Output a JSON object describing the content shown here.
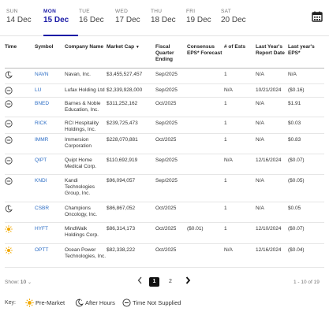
{
  "days": [
    {
      "dow": "SUN",
      "date": "14 Dec",
      "active": false
    },
    {
      "dow": "MON",
      "date": "15 Dec",
      "active": true
    },
    {
      "dow": "TUE",
      "date": "16 Dec",
      "active": false
    },
    {
      "dow": "WED",
      "date": "17 Dec",
      "active": false
    },
    {
      "dow": "THU",
      "date": "18 Dec",
      "active": false
    },
    {
      "dow": "FRI",
      "date": "19 Dec",
      "active": false
    },
    {
      "dow": "SAT",
      "date": "20 Dec",
      "active": false
    }
  ],
  "columns": {
    "time": "Time",
    "symbol": "Symbol",
    "company": "Company Name",
    "market_cap": "Market Cap",
    "fiscal_l1": "Fiscal",
    "fiscal_l2": "Quarter",
    "fiscal_l3": "Ending",
    "consensus_l1": "Consensus",
    "consensus_l2": "EPS* Forecast",
    "ests": "# of Ests",
    "last_report_l1": "Last Year's",
    "last_report_l2": "Report Date",
    "last_eps_l1": "Last year's",
    "last_eps_l2": "EPS*",
    "sort_indicator": "▼"
  },
  "rows": [
    {
      "time": "after-hours",
      "symbol": "NAVN",
      "company": [
        "Navan, Inc."
      ],
      "market_cap": "$3,455,527,457",
      "fiscal": "Sep/2025",
      "consensus": "",
      "ests": "1",
      "last_report": "N/A",
      "last_eps": "N/A"
    },
    {
      "time": "not-supplied",
      "symbol": "LU",
      "company": [
        "Lufax Holding Ltd"
      ],
      "market_cap": "$2,339,928,000",
      "fiscal": "Sep/2025",
      "consensus": "",
      "ests": "N/A",
      "last_report": "10/21/2024",
      "last_eps": "($0.16)"
    },
    {
      "time": "not-supplied",
      "symbol": "BNED",
      "company": [
        "Barnes & Noble",
        "Education, Inc."
      ],
      "market_cap": "$311,252,162",
      "fiscal": "Oct/2025",
      "consensus": "",
      "ests": "1",
      "last_report": "N/A",
      "last_eps": "$1.91"
    },
    {
      "time": "not-supplied",
      "symbol": "RICK",
      "company": [
        "RCI Hospitality",
        "Holdings, Inc."
      ],
      "market_cap": "$239,725,473",
      "fiscal": "Sep/2025",
      "consensus": "",
      "ests": "1",
      "last_report": "N/A",
      "last_eps": "$0.03"
    },
    {
      "time": "not-supplied",
      "symbol": "IMMR",
      "company": [
        "Immersion",
        "Corporation"
      ],
      "market_cap": "$228,070,881",
      "fiscal": "Oct/2025",
      "consensus": "",
      "ests": "1",
      "last_report": "N/A",
      "last_eps": "$0.83"
    },
    {
      "time": "not-supplied",
      "symbol": "QIPT",
      "company": [
        "Quipt Home",
        "Medical Corp."
      ],
      "market_cap": "$110,692,919",
      "fiscal": "Sep/2025",
      "consensus": "",
      "ests": "N/A",
      "last_report": "12/16/2024",
      "last_eps": "($0.07)"
    },
    {
      "time": "not-supplied",
      "symbol": "KNDI",
      "company": [
        "Kandi",
        "Technologies",
        "Group, Inc."
      ],
      "market_cap": "$96,094,057",
      "fiscal": "Sep/2025",
      "consensus": "",
      "ests": "1",
      "last_report": "N/A",
      "last_eps": "($0.05)"
    },
    {
      "time": "after-hours",
      "symbol": "CSBR",
      "company": [
        "Champions",
        "Oncology, Inc."
      ],
      "market_cap": "$86,867,052",
      "fiscal": "Oct/2025",
      "consensus": "",
      "ests": "1",
      "last_report": "N/A",
      "last_eps": "$0.05"
    },
    {
      "time": "pre-market",
      "symbol": "HYFT",
      "company": [
        "MindWalk",
        "Holdings Corp."
      ],
      "market_cap": "$86,314,173",
      "fiscal": "Oct/2025",
      "consensus": "($0.01)",
      "ests": "1",
      "last_report": "12/10/2024",
      "last_eps": "($0.07)"
    },
    {
      "time": "pre-market",
      "symbol": "OPTT",
      "company": [
        "Ocean Power",
        "Technologies, Inc."
      ],
      "market_cap": "$82,338,222",
      "fiscal": "Oct/2025",
      "consensus": "",
      "ests": "N/A",
      "last_report": "12/16/2024",
      "last_eps": "($0.04)"
    }
  ],
  "pagination": {
    "show_label": "Show:",
    "show_value": "10",
    "current_page": "1",
    "next_page": "2",
    "range": "1 - 10 of 19"
  },
  "key": {
    "label": "Key:",
    "pre_market": "Pre-Market",
    "after_hours": "After Hours",
    "not_supplied": "Time Not Supplied"
  },
  "colors": {
    "accent": "#1a1aa6",
    "symbol": "#2b6cc4",
    "sun": "#f2a900"
  }
}
